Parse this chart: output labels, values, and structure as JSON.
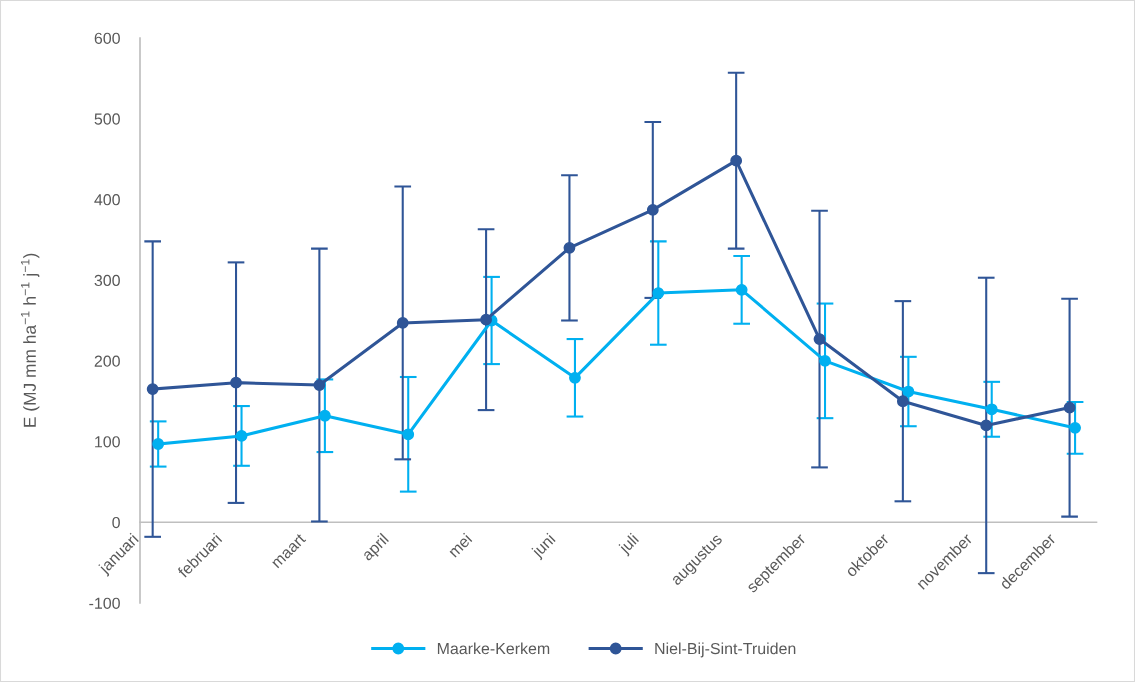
{
  "chart_data": {
    "type": "line",
    "ylabel": "E (MJ mm ha$^{−1}$ h$^{−1}$ j$^{−1}$)",
    "categories": [
      "januari",
      "februari",
      "maart",
      "april",
      "mei",
      "juni",
      "juli",
      "augustus",
      "september",
      "oktober",
      "november",
      "december"
    ],
    "series": [
      {
        "name": "Maarke-Kerkem",
        "color": "#00b0f0",
        "values": [
          97,
          107,
          132,
          109,
          250,
          179,
          284,
          288,
          200,
          162,
          140,
          117
        ],
        "errors": [
          28,
          37,
          45,
          71,
          54,
          48,
          64,
          42,
          71,
          43,
          34,
          32
        ]
      },
      {
        "name": "Niel-Bij-Sint-Truiden",
        "color": "#2f5597",
        "values": [
          165,
          173,
          170,
          247,
          251,
          340,
          387,
          448,
          227,
          150,
          120,
          142
        ],
        "errors": [
          183,
          149,
          169,
          169,
          112,
          90,
          109,
          109,
          159,
          124,
          183,
          135
        ]
      }
    ],
    "ylim": [
      -100,
      600
    ],
    "yticks": [
      -100,
      0,
      100,
      200,
      300,
      400,
      500,
      600
    ],
    "marker": "circle",
    "line_style": "solid",
    "legend": "bottom"
  }
}
